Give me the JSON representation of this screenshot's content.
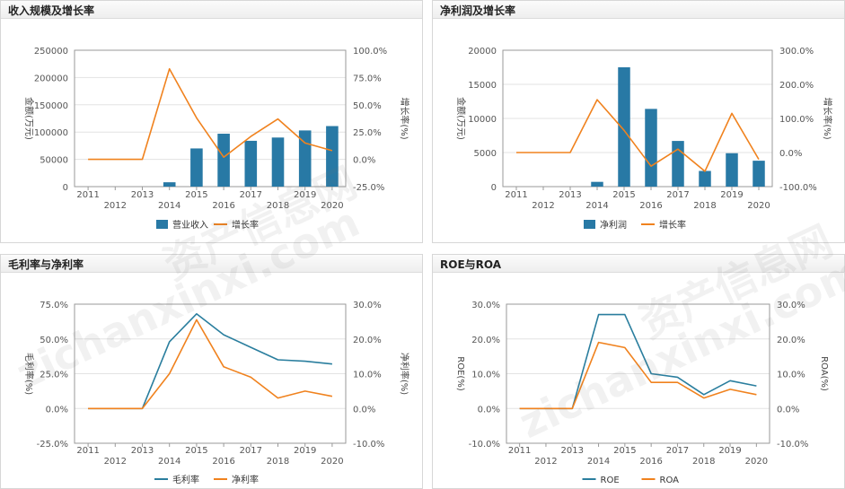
{
  "colors": {
    "bar": "#2879a5",
    "blue_line": "#2a7e9e",
    "orange": "#f0821e",
    "grid": "#e3e3e3",
    "axis": "#999999"
  },
  "watermarks": [
    "资产信息网",
    "zichanxinxi.com",
    "资产信息网",
    "zichanxinxi.com"
  ],
  "chart_data": [
    {
      "id": "revenue",
      "title": "收入规模及增长率",
      "type": "bar+line",
      "categories": [
        "2011",
        "2012",
        "2013",
        "2014",
        "2015",
        "2016",
        "2017",
        "2018",
        "2019",
        "2020"
      ],
      "ylabel": "金额(万元)",
      "y2label": "增长率(%)",
      "ylim": [
        0,
        250000
      ],
      "y_ticks": [
        0,
        50000,
        100000,
        150000,
        200000,
        250000
      ],
      "y_tick_labels": [
        "0",
        "50000",
        "100000",
        "150000",
        "200000",
        "250000"
      ],
      "y2lim": [
        -25,
        100
      ],
      "y2_ticks": [
        -25,
        0,
        25,
        50,
        75,
        100
      ],
      "y2_tick_labels": [
        "-25.0%",
        "0.0%",
        "25.0%",
        "50.0%",
        "75.0%",
        "100.0%"
      ],
      "series": [
        {
          "name": "营业收入",
          "kind": "bar",
          "axis": "left",
          "values": [
            0,
            0,
            0,
            8000,
            70000,
            97000,
            84000,
            90000,
            103000,
            111000
          ]
        },
        {
          "name": "增长率",
          "kind": "line",
          "axis": "right",
          "color": "orange",
          "values": [
            0,
            0,
            0,
            83,
            38,
            2,
            21,
            37,
            15,
            8
          ]
        }
      ]
    },
    {
      "id": "netprofit",
      "title": "净利润及增长率",
      "type": "bar+line",
      "categories": [
        "2011",
        "2012",
        "2013",
        "2014",
        "2015",
        "2016",
        "2017",
        "2018",
        "2019",
        "2020"
      ],
      "ylabel": "金额(万元)",
      "y2label": "增长率(%)",
      "ylim": [
        0,
        20000
      ],
      "y_ticks": [
        0,
        5000,
        10000,
        15000,
        20000
      ],
      "y_tick_labels": [
        "0",
        "5000",
        "10000",
        "15000",
        "20000"
      ],
      "y2lim": [
        -100,
        300
      ],
      "y2_ticks": [
        -100,
        0,
        100,
        200,
        300
      ],
      "y2_tick_labels": [
        "-100.0%",
        "0.0%",
        "100.0%",
        "200.0%",
        "300.0%"
      ],
      "series": [
        {
          "name": "净利润",
          "kind": "bar",
          "axis": "left",
          "values": [
            0,
            0,
            0,
            700,
            17500,
            11400,
            6700,
            2300,
            4900,
            3800
          ]
        },
        {
          "name": "增长率",
          "kind": "line",
          "axis": "right",
          "color": "orange",
          "values": [
            0,
            0,
            0,
            155,
            65,
            -40,
            10,
            -55,
            115,
            -20
          ]
        }
      ]
    },
    {
      "id": "margins",
      "title": "毛利率与净利率",
      "type": "line",
      "categories": [
        "2011",
        "2012",
        "2013",
        "2014",
        "2015",
        "2016",
        "2017",
        "2018",
        "2019",
        "2020"
      ],
      "ylabel": "毛利率(%)",
      "y2label": "净利率(%)",
      "ylim": [
        -25,
        75
      ],
      "y_ticks": [
        -25,
        0,
        25,
        50,
        75
      ],
      "y_tick_labels": [
        "-25.0%",
        "0.0%",
        "25.0%",
        "50.0%",
        "75.0%"
      ],
      "y2lim": [
        -10,
        30
      ],
      "y2_ticks": [
        -10,
        0,
        10,
        20,
        30
      ],
      "y2_tick_labels": [
        "-10.0%",
        "0.0%",
        "10.0%",
        "20.0%",
        "30.0%"
      ],
      "series": [
        {
          "name": "毛利率",
          "kind": "line",
          "axis": "left",
          "color": "blue_line",
          "values": [
            0,
            0,
            0,
            48,
            68,
            53,
            44,
            35,
            34,
            32
          ]
        },
        {
          "name": "净利率",
          "kind": "line",
          "axis": "right",
          "color": "orange",
          "values": [
            0,
            0,
            0,
            10,
            25.5,
            12,
            9,
            3,
            5,
            3.5
          ]
        }
      ]
    },
    {
      "id": "roe_roa",
      "title": "ROE与ROA",
      "type": "line",
      "categories": [
        "2011",
        "2012",
        "2013",
        "2014",
        "2015",
        "2016",
        "2017",
        "2018",
        "2019",
        "2020"
      ],
      "ylabel": "ROE(%)",
      "y2label": "ROA(%)",
      "ylim": [
        -10,
        30
      ],
      "y_ticks": [
        -10,
        0,
        10,
        20,
        30
      ],
      "y_tick_labels": [
        "-10.0%",
        "0.0%",
        "10.0%",
        "20.0%",
        "30.0%"
      ],
      "y2lim": [
        -10,
        30
      ],
      "y2_ticks": [
        -10,
        0,
        10,
        20,
        30
      ],
      "y2_tick_labels": [
        "-10.0%",
        "0.0%",
        "10.0%",
        "20.0%",
        "30.0%"
      ],
      "series": [
        {
          "name": "ROE",
          "kind": "line",
          "axis": "left",
          "color": "blue_line",
          "values": [
            0,
            0,
            0,
            27,
            27,
            10,
            9,
            4,
            8,
            6.5
          ]
        },
        {
          "name": "ROA",
          "kind": "line",
          "axis": "right",
          "color": "orange",
          "values": [
            0,
            0,
            0,
            19,
            17.5,
            7.5,
            7.5,
            3,
            5.5,
            4
          ]
        }
      ]
    }
  ]
}
